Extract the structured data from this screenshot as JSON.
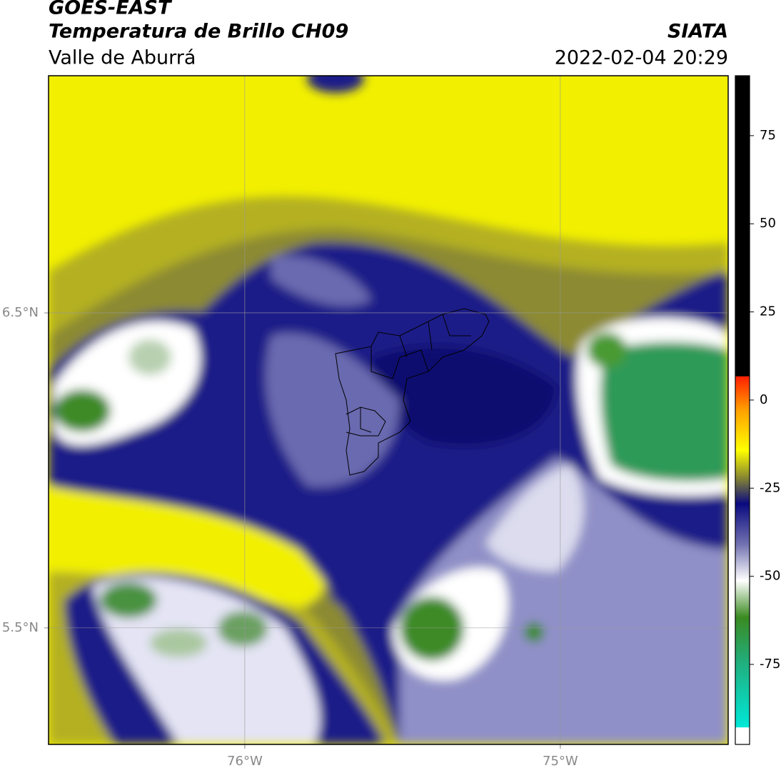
{
  "chart_data": {
    "type": "map",
    "title": "GOES-EAST",
    "subtitle": "Temperatura de Brillo CH09",
    "region": "Valle de Aburrá",
    "source": "SIATA",
    "datetime": "2022-02-04 20:29",
    "xlim": [
      -76.622,
      -74.468
    ],
    "ylim": [
      5.13,
      7.253
    ],
    "xticks": [
      {
        "value": -76,
        "label": "76°W"
      },
      {
        "value": -75,
        "label": "75°W"
      }
    ],
    "yticks": [
      {
        "value": 6.5,
        "label": "6.5°N"
      },
      {
        "value": 5.5,
        "label": "5.5°N"
      }
    ],
    "clim": [
      -97.7,
      92
    ],
    "cticks": [
      75,
      50,
      25,
      0,
      -25,
      -50,
      -75
    ],
    "grid": true
  }
}
